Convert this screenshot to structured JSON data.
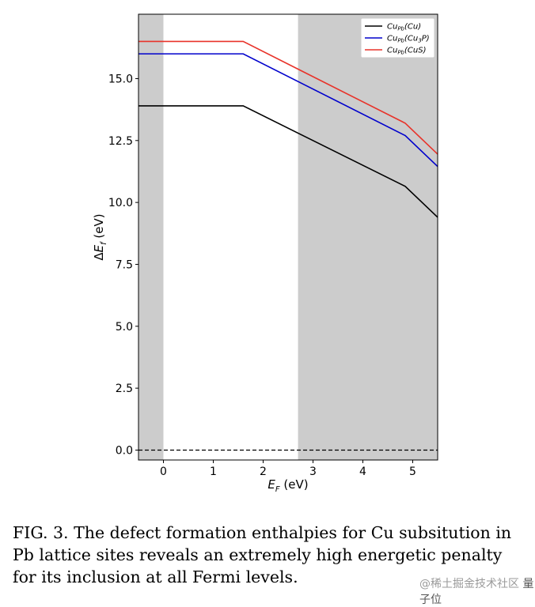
{
  "chart_data": {
    "type": "line",
    "xlabel": "E_F (eV)",
    "ylabel": "ΔE_f (eV)",
    "xlim": [
      -0.5,
      5.5
    ],
    "ylim": [
      -0.4,
      17.6
    ],
    "xticks": [
      0,
      1,
      2,
      3,
      4,
      5
    ],
    "yticks": [
      0.0,
      2.5,
      5.0,
      7.5,
      10.0,
      12.5,
      15.0
    ],
    "ytick_labels": [
      "0.0",
      "2.5",
      "5.0",
      "7.5",
      "10.0",
      "12.5",
      "15.0"
    ],
    "shaded_regions": [
      {
        "x0": -0.5,
        "x1": 0.0,
        "color": "#cccccc"
      },
      {
        "x0": 2.7,
        "x1": 5.5,
        "color": "#cccccc"
      }
    ],
    "reference_line": {
      "y": 0.0,
      "style": "dashed",
      "color": "#000000"
    },
    "legend_position": "top-right",
    "series": [
      {
        "name": "Cu_Pb(Cu)",
        "color": "#000000",
        "x": [
          -0.5,
          1.6,
          4.85,
          5.5
        ],
        "y": [
          13.9,
          13.9,
          10.65,
          9.4
        ]
      },
      {
        "name": "Cu_Pb(Cu_3P)",
        "color": "#0000cc",
        "x": [
          -0.5,
          1.6,
          4.85,
          5.5
        ],
        "y": [
          16.0,
          16.0,
          12.7,
          11.45
        ]
      },
      {
        "name": "Cu_Pb(CuS)",
        "color": "#e8332a",
        "x": [
          -0.5,
          1.6,
          4.85,
          5.5
        ],
        "y": [
          16.5,
          16.5,
          13.2,
          11.95
        ]
      }
    ]
  },
  "legend": [
    {
      "base": "Cu",
      "sub": "Pb",
      "paren_open": "(",
      "species": "Cu",
      "species_sub": "",
      "species_tail": "",
      "paren_close": ")"
    },
    {
      "base": "Cu",
      "sub": "Pb",
      "paren_open": "(",
      "species": "Cu",
      "species_sub": "3",
      "species_tail": "P",
      "paren_close": ")"
    },
    {
      "base": "Cu",
      "sub": "Pb",
      "paren_open": "(",
      "species": "CuS",
      "species_sub": "",
      "species_tail": "",
      "paren_close": ")"
    }
  ],
  "axis": {
    "x_main": "E",
    "x_sub": "F",
    "x_unit": " (eV)",
    "y_delta": "Δ",
    "y_main": "E",
    "y_sub": "f",
    "y_unit": " (eV)"
  },
  "caption": "FIG. 3.  The defect formation enthalpies for Cu subsitution in Pb lattice sites reveals an extremely high energetic penalty for its inclusion at all Fermi levels.",
  "watermark": {
    "left": "@稀土掘金技术社区",
    "brand": "量子位"
  }
}
